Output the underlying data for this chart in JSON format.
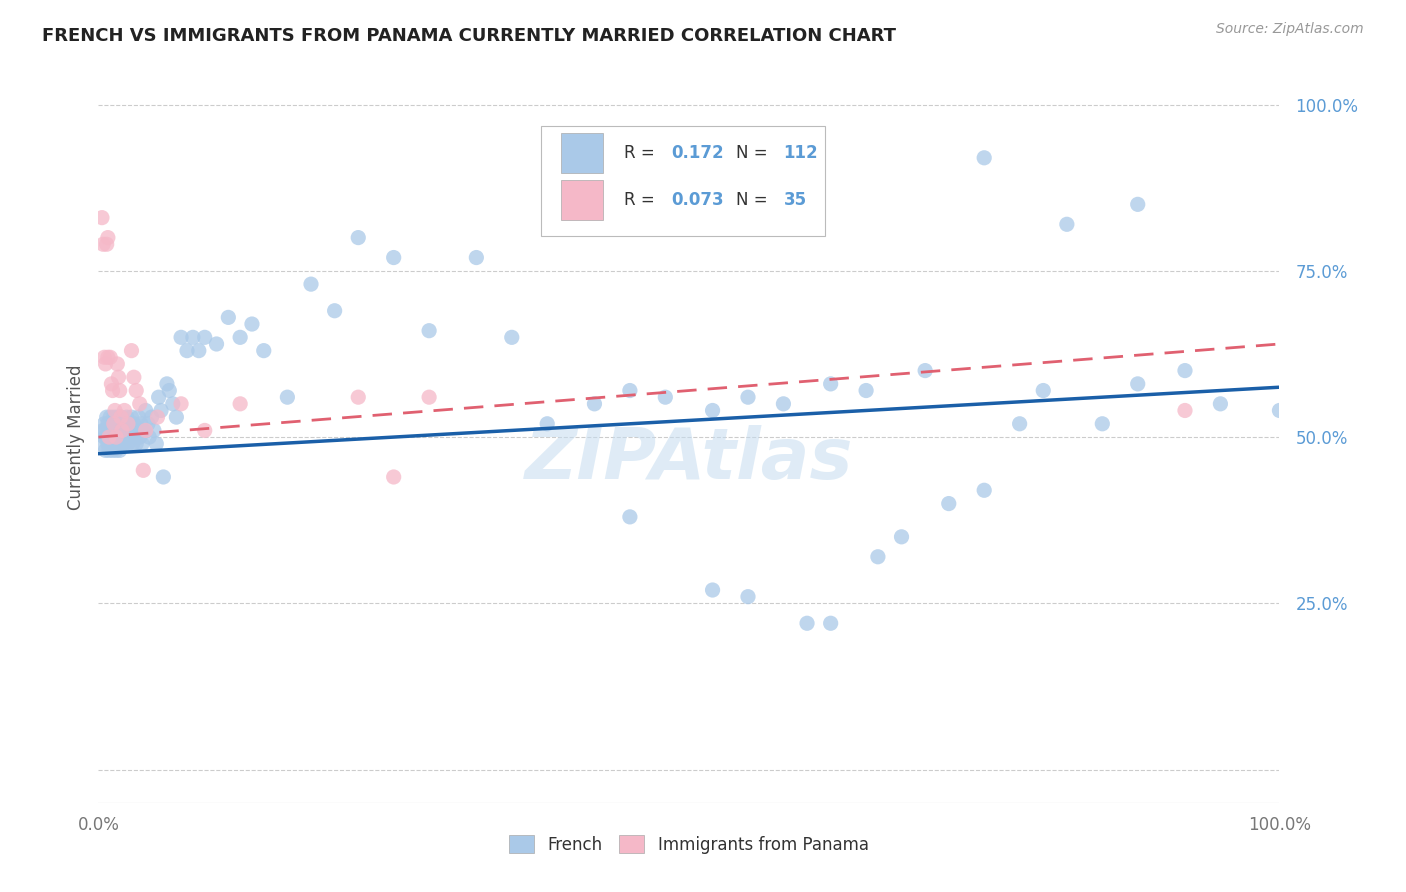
{
  "title": "FRENCH VS IMMIGRANTS FROM PANAMA CURRENTLY MARRIED CORRELATION CHART",
  "source": "Source: ZipAtlas.com",
  "ylabel": "Currently Married",
  "watermark": "ZIPAtlas",
  "legend_french_R": "0.172",
  "legend_french_N": "112",
  "legend_panama_R": "0.073",
  "legend_panama_N": "35",
  "french_color": "#aac9e8",
  "panama_color": "#f5b8c8",
  "french_line_color": "#1a5fa8",
  "panama_line_color": "#e06070",
  "xlim": [
    0,
    1.0
  ],
  "ylim": [
    -0.05,
    1.05
  ],
  "ytick_positions": [
    0.0,
    0.25,
    0.5,
    0.75,
    1.0
  ],
  "ytick_labels": [
    "",
    "25.0%",
    "50.0%",
    "75.0%",
    "100.0%"
  ],
  "xtick_positions": [
    0.0,
    1.0
  ],
  "xtick_labels": [
    "0.0%",
    "100.0%"
  ],
  "background_color": "#ffffff",
  "grid_color": "#cccccc",
  "axis_label_color": "#5b9bd5",
  "french_x": [
    0.003,
    0.004,
    0.005,
    0.005,
    0.006,
    0.006,
    0.007,
    0.007,
    0.008,
    0.008,
    0.009,
    0.009,
    0.01,
    0.01,
    0.011,
    0.011,
    0.012,
    0.012,
    0.013,
    0.013,
    0.014,
    0.014,
    0.015,
    0.015,
    0.016,
    0.016,
    0.017,
    0.017,
    0.018,
    0.018,
    0.019,
    0.019,
    0.02,
    0.02,
    0.021,
    0.022,
    0.022,
    0.023,
    0.024,
    0.025,
    0.025,
    0.026,
    0.027,
    0.028,
    0.029,
    0.03,
    0.031,
    0.032,
    0.033,
    0.034,
    0.035,
    0.036,
    0.037,
    0.038,
    0.04,
    0.042,
    0.043,
    0.045,
    0.047,
    0.049,
    0.051,
    0.053,
    0.055,
    0.058,
    0.06,
    0.063,
    0.066,
    0.07,
    0.075,
    0.08,
    0.085,
    0.09,
    0.1,
    0.11,
    0.12,
    0.13,
    0.14,
    0.16,
    0.18,
    0.2,
    0.22,
    0.25,
    0.28,
    0.32,
    0.35,
    0.38,
    0.42,
    0.45,
    0.48,
    0.52,
    0.55,
    0.58,
    0.62,
    0.65,
    0.7,
    0.75,
    0.8,
    0.85,
    0.88,
    0.92,
    0.95,
    1.0,
    0.45,
    0.52,
    0.55,
    0.6,
    0.62,
    0.66,
    0.68,
    0.72,
    0.75,
    0.78,
    0.82,
    0.88
  ],
  "french_y": [
    0.49,
    0.51,
    0.5,
    0.52,
    0.48,
    0.51,
    0.5,
    0.53,
    0.49,
    0.52,
    0.48,
    0.51,
    0.5,
    0.53,
    0.49,
    0.52,
    0.48,
    0.51,
    0.5,
    0.53,
    0.49,
    0.52,
    0.48,
    0.51,
    0.5,
    0.53,
    0.49,
    0.52,
    0.48,
    0.51,
    0.5,
    0.53,
    0.49,
    0.52,
    0.51,
    0.49,
    0.52,
    0.5,
    0.53,
    0.49,
    0.52,
    0.5,
    0.51,
    0.53,
    0.49,
    0.52,
    0.5,
    0.49,
    0.51,
    0.53,
    0.5,
    0.52,
    0.49,
    0.51,
    0.54,
    0.52,
    0.5,
    0.53,
    0.51,
    0.49,
    0.56,
    0.54,
    0.44,
    0.58,
    0.57,
    0.55,
    0.53,
    0.65,
    0.63,
    0.65,
    0.63,
    0.65,
    0.64,
    0.68,
    0.65,
    0.67,
    0.63,
    0.56,
    0.73,
    0.69,
    0.8,
    0.77,
    0.66,
    0.77,
    0.65,
    0.52,
    0.55,
    0.57,
    0.56,
    0.54,
    0.56,
    0.55,
    0.58,
    0.57,
    0.6,
    0.92,
    0.57,
    0.52,
    0.58,
    0.6,
    0.55,
    0.54,
    0.38,
    0.27,
    0.26,
    0.22,
    0.22,
    0.32,
    0.35,
    0.4,
    0.42,
    0.52,
    0.82,
    0.85
  ],
  "panama_x": [
    0.003,
    0.004,
    0.005,
    0.006,
    0.007,
    0.008,
    0.008,
    0.009,
    0.01,
    0.011,
    0.012,
    0.013,
    0.014,
    0.015,
    0.016,
    0.017,
    0.018,
    0.019,
    0.02,
    0.022,
    0.025,
    0.028,
    0.03,
    0.032,
    0.035,
    0.038,
    0.04,
    0.05,
    0.07,
    0.09,
    0.12,
    0.22,
    0.25,
    0.28,
    0.92
  ],
  "panama_y": [
    0.83,
    0.79,
    0.62,
    0.61,
    0.79,
    0.62,
    0.8,
    0.5,
    0.62,
    0.58,
    0.57,
    0.52,
    0.54,
    0.5,
    0.61,
    0.59,
    0.57,
    0.53,
    0.51,
    0.54,
    0.52,
    0.63,
    0.59,
    0.57,
    0.55,
    0.45,
    0.51,
    0.53,
    0.55,
    0.51,
    0.55,
    0.56,
    0.44,
    0.56,
    0.54
  ],
  "french_slope": 0.1,
  "french_intercept": 0.475,
  "panama_slope": 0.14,
  "panama_intercept": 0.5
}
